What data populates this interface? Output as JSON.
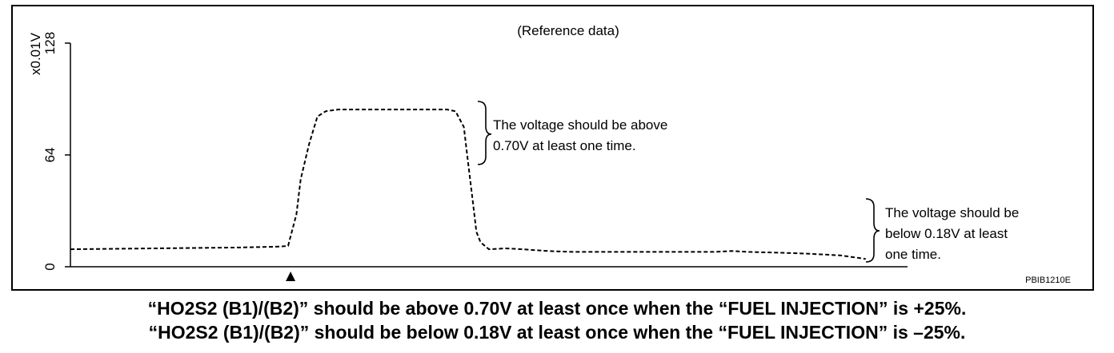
{
  "chart_data": {
    "type": "line",
    "title": "(Reference data)",
    "ylabel": "x0.01V",
    "xlabel": "",
    "ylim": [
      0,
      128
    ],
    "y_ticks": [
      0,
      64,
      128
    ],
    "grid": false,
    "x_range": [
      0,
      100
    ],
    "series": [
      {
        "style": "dashed",
        "points": [
          [
            0,
            10
          ],
          [
            10,
            10.5
          ],
          [
            20,
            11
          ],
          [
            25,
            11.5
          ],
          [
            26,
            12
          ],
          [
            27,
            30
          ],
          [
            27.5,
            50
          ],
          [
            28.5,
            70
          ],
          [
            29.5,
            86
          ],
          [
            30.5,
            89
          ],
          [
            32,
            90
          ],
          [
            45,
            90
          ],
          [
            46,
            89
          ],
          [
            47,
            80
          ],
          [
            47.5,
            60
          ],
          [
            48,
            40
          ],
          [
            48.5,
            20
          ],
          [
            49,
            14
          ],
          [
            50,
            10
          ],
          [
            52,
            10.5
          ],
          [
            54,
            10
          ],
          [
            57,
            9
          ],
          [
            60,
            8.5
          ],
          [
            70,
            8.5
          ],
          [
            77,
            8.5
          ],
          [
            79,
            9
          ],
          [
            81,
            8.5
          ],
          [
            85,
            8
          ],
          [
            88,
            7.5
          ],
          [
            92,
            6.5
          ],
          [
            95,
            4.5
          ]
        ]
      }
    ],
    "annotations": [
      {
        "lines": [
          "The voltage should be above",
          "0.70V at least one time."
        ]
      },
      {
        "lines": [
          "The voltage should be",
          "below 0.18V at least",
          "one time."
        ]
      }
    ],
    "marker_x": 26.3
  },
  "figure_code": "PBIB1210E",
  "caption": {
    "line1": "“HO2S2 (B1)/(B2)” should be above 0.70V at least once when the “FUEL INJECTION” is +25%.",
    "line2": "“HO2S2 (B1)/(B2)” should be below 0.18V at least once when the “FUEL INJECTION” is –25%."
  }
}
